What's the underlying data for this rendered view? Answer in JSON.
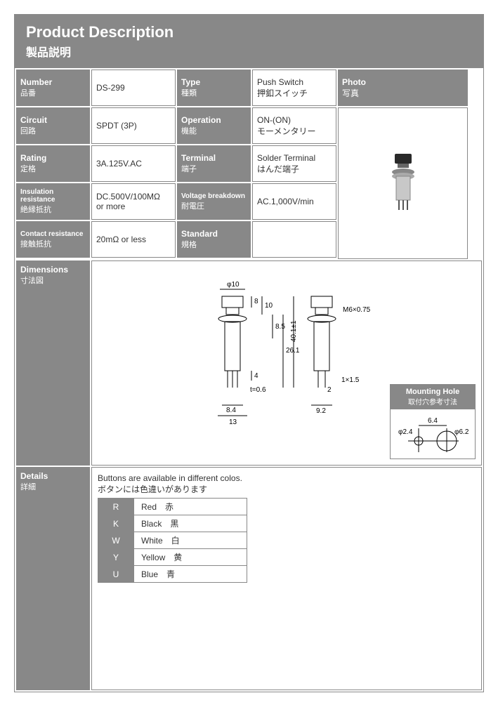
{
  "header": {
    "title_en": "Product Description",
    "title_jp": "製品説明"
  },
  "colors": {
    "panel": "#888888",
    "panel_text": "#ffffff",
    "border": "#888888",
    "text": "#333333"
  },
  "specs": {
    "number": {
      "label_en": "Number",
      "label_jp": "品番",
      "value": "DS-299"
    },
    "type": {
      "label_en": "Type",
      "label_jp": "種類",
      "value_en": "Push Switch",
      "value_jp": "押釦スイッチ"
    },
    "circuit": {
      "label_en": "Circuit",
      "label_jp": "回路",
      "value": "SPDT (3P)"
    },
    "operation": {
      "label_en": "Operation",
      "label_jp": "機能",
      "value_en": "ON-(ON)",
      "value_jp": "モーメンタリー"
    },
    "rating": {
      "label_en": "Rating",
      "label_jp": "定格",
      "value": "3A.125V.AC"
    },
    "terminal": {
      "label_en": "Terminal",
      "label_jp": "端子",
      "value_en": "Solder Terminal",
      "value_jp": "はんだ端子"
    },
    "insulation": {
      "label_en": "Insulation resistance",
      "label_jp": "絶縁抵抗",
      "value_l1": "DC.500V/100MΩ",
      "value_l2": "or more"
    },
    "voltage": {
      "label_en": "Voltage breakdown",
      "label_jp": "耐電圧",
      "value": "AC.1,000V/min"
    },
    "contact": {
      "label_en": "Contact resistance",
      "label_jp": "接触抵抗",
      "value": "20mΩ or less"
    },
    "standard": {
      "label_en": "Standard",
      "label_jp": "規格",
      "value": ""
    },
    "photo": {
      "label_en": "Photo",
      "label_jp": "写真"
    }
  },
  "dimensions_label": {
    "en": "Dimensions",
    "jp": "寸法図"
  },
  "mounting_hole": {
    "en": "Mounting Hole",
    "jp": "取付穴参考寸法",
    "d1": "φ2.4",
    "mid": "6.4",
    "d2": "φ6.2"
  },
  "dims": {
    "phi10": "φ10",
    "h8": "8",
    "h10": "10",
    "h85": "8.5",
    "h261": "26.1",
    "h401": "40.1±1",
    "h4": "4",
    "t06": "t=0.6",
    "w84": "8.4",
    "w13": "13",
    "w92": "9.2",
    "w2": "2",
    "screw": "M6×0.75",
    "slot": "1×1.5"
  },
  "details_label": {
    "en": "Details",
    "jp": "詳細"
  },
  "details": {
    "intro_en": "Buttons are available in different colos.",
    "intro_jp": "ボタンには色違いがあります",
    "rows": [
      {
        "code": "R",
        "name_en": "Red",
        "name_jp": "赤"
      },
      {
        "code": "K",
        "name_en": "Black",
        "name_jp": "黒"
      },
      {
        "code": "W",
        "name_en": "White",
        "name_jp": "白"
      },
      {
        "code": "Y",
        "name_en": "Yellow",
        "name_jp": "黄"
      },
      {
        "code": "U",
        "name_en": "Blue",
        "name_jp": "青"
      }
    ]
  }
}
